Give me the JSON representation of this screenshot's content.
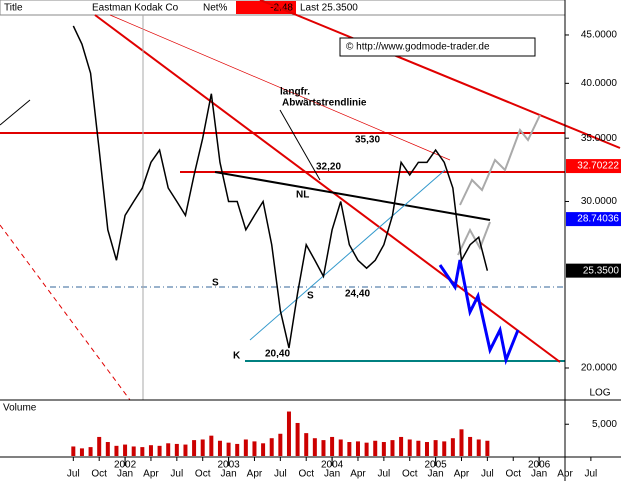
{
  "chart_data": [
    {
      "type": "line",
      "header": [
        "Title",
        "Eastman Kodak Co",
        "Net%",
        "-2.48",
        "Last 25.3500"
      ],
      "copyright": "© http://www.godmode-trader.de",
      "annotations": [
        "langfr.",
        "Abwärtstrendlinie",
        "35,30",
        "32,20",
        "NL",
        "S",
        "S",
        "24,40",
        "K",
        "20,40"
      ],
      "scale_label": "LOG",
      "log_scale": true,
      "x": [
        6,
        7,
        8,
        9,
        10,
        11,
        12,
        13,
        14,
        15,
        16,
        17,
        18,
        19,
        20,
        21,
        22,
        23,
        24,
        25,
        26,
        27,
        28,
        29,
        30,
        31,
        32,
        33,
        34,
        35,
        36,
        37,
        38,
        39,
        40,
        41,
        42,
        43,
        44,
        45,
        46,
        47,
        48,
        49,
        50,
        51,
        52,
        53,
        54
      ],
      "series": [
        {
          "name": "Eastman Kodak Co",
          "color": "#000000",
          "values": [
            46,
            44,
            41,
            34,
            28,
            26,
            29,
            30,
            31,
            33,
            34,
            31,
            30,
            29,
            32,
            35,
            39,
            33,
            30,
            30,
            28,
            29,
            30,
            27,
            23,
            21,
            24,
            27,
            26,
            25,
            28,
            30,
            27,
            26,
            25.5,
            26,
            27,
            29,
            33,
            32,
            33,
            33,
            34,
            33,
            31,
            26,
            27,
            27.5,
            25.35
          ]
        }
      ],
      "xlim": [
        -2.5,
        63
      ],
      "ylim": [
        18.5,
        49
      ],
      "yticks": [
        {
          "value": 45,
          "label": "45.0000"
        },
        {
          "value": 40,
          "label": "40.0000"
        },
        {
          "value": 35,
          "label": "35.0000"
        },
        {
          "value": 30,
          "label": "30.0000"
        },
        {
          "value": 20,
          "label": "20.0000"
        }
      ],
      "level_labels": [
        {
          "value": 32.70222,
          "label": "32.70222",
          "color": "#ff0000"
        },
        {
          "value": 28.74036,
          "label": "28.74036",
          "color": "#0000ff"
        },
        {
          "value": 25.35,
          "label": "25.3500",
          "color": "#000000"
        }
      ]
    },
    {
      "type": "bar",
      "title": "Volume",
      "x": [
        6,
        7,
        8,
        9,
        10,
        11,
        12,
        13,
        14,
        15,
        16,
        17,
        18,
        19,
        20,
        21,
        22,
        23,
        24,
        25,
        26,
        27,
        28,
        29,
        30,
        31,
        32,
        33,
        34,
        35,
        36,
        37,
        38,
        39,
        40,
        41,
        42,
        43,
        44,
        45,
        46,
        47,
        48,
        49,
        50,
        51,
        52,
        53,
        54
      ],
      "values": [
        1500,
        1200,
        1400,
        3000,
        2200,
        1600,
        1800,
        1500,
        1400,
        1700,
        1600,
        2000,
        1900,
        1800,
        2500,
        2600,
        3200,
        2400,
        2100,
        1900,
        2600,
        2300,
        2000,
        2800,
        3500,
        7000,
        5200,
        3600,
        2800,
        2500,
        3000,
        2600,
        2200,
        2300,
        2100,
        2400,
        2200,
        2500,
        3000,
        2600,
        2400,
        2200,
        2500,
        2300,
        2800,
        4200,
        3000,
        2600,
        2400
      ],
      "color": "#cc0000",
      "ylim": [
        0,
        8500
      ],
      "yticks": [
        {
          "value": 5000,
          "label": "5,000"
        }
      ],
      "xlim": [
        -2.5,
        63
      ],
      "xticks": [
        {
          "value": 6,
          "label": "Jul"
        },
        {
          "value": 9,
          "label": "Oct"
        },
        {
          "value": 12,
          "label": "Jan"
        },
        {
          "value": 15,
          "label": "Apr"
        },
        {
          "value": 18,
          "label": "Jul"
        },
        {
          "value": 21,
          "label": "Oct"
        },
        {
          "value": 24,
          "label": "Jan"
        },
        {
          "value": 27,
          "label": "Apr"
        },
        {
          "value": 30,
          "label": "Jul"
        },
        {
          "value": 33,
          "label": "Oct"
        },
        {
          "value": 36,
          "label": "Jan"
        },
        {
          "value": 39,
          "label": "Apr"
        },
        {
          "value": 42,
          "label": "Jul"
        },
        {
          "value": 45,
          "label": "Oct"
        },
        {
          "value": 48,
          "label": "Jan"
        },
        {
          "value": 51,
          "label": "Apr"
        },
        {
          "value": 54,
          "label": "Jul"
        },
        {
          "value": 57,
          "label": "Oct"
        },
        {
          "value": 60,
          "label": "Jan"
        },
        {
          "value": 63,
          "label": "Apr"
        },
        {
          "value": 66,
          "label": "Jul"
        }
      ],
      "year_ticks": [
        {
          "value": 12,
          "label": "2002"
        },
        {
          "value": 24,
          "label": "2003"
        },
        {
          "value": 36,
          "label": "2004"
        },
        {
          "value": 48,
          "label": "2005"
        },
        {
          "value": 60,
          "label": "2006"
        }
      ]
    }
  ]
}
